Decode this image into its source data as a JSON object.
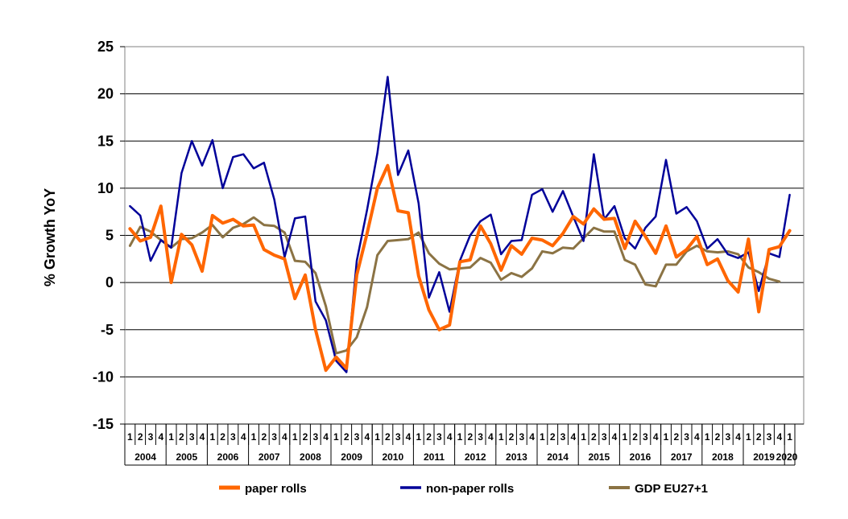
{
  "chart_data": {
    "type": "line",
    "title": "",
    "xlabel": "",
    "ylabel": "% Growth YoY",
    "ylim": [
      -15,
      25
    ],
    "y_ticks": [
      -15,
      -10,
      -5,
      0,
      5,
      10,
      15,
      20,
      25
    ],
    "grid": "horizontal",
    "legend_position": "bottom",
    "quarter_labels": [
      "1",
      "2",
      "3",
      "4"
    ],
    "years": [
      "2004",
      "2005",
      "2006",
      "2007",
      "2008",
      "2009",
      "2010",
      "2011",
      "2012",
      "2013",
      "2014",
      "2015",
      "2016",
      "2017",
      "2018",
      "2019",
      "2020"
    ],
    "x": [
      "2004Q1",
      "2004Q2",
      "2004Q3",
      "2004Q4",
      "2005Q1",
      "2005Q2",
      "2005Q3",
      "2005Q4",
      "2006Q1",
      "2006Q2",
      "2006Q3",
      "2006Q4",
      "2007Q1",
      "2007Q2",
      "2007Q3",
      "2007Q4",
      "2008Q1",
      "2008Q2",
      "2008Q3",
      "2008Q4",
      "2009Q1",
      "2009Q2",
      "2009Q3",
      "2009Q4",
      "2010Q1",
      "2010Q2",
      "2010Q3",
      "2010Q4",
      "2011Q1",
      "2011Q2",
      "2011Q3",
      "2011Q4",
      "2012Q1",
      "2012Q2",
      "2012Q3",
      "2012Q4",
      "2013Q1",
      "2013Q2",
      "2013Q3",
      "2013Q4",
      "2014Q1",
      "2014Q2",
      "2014Q3",
      "2014Q4",
      "2015Q1",
      "2015Q2",
      "2015Q3",
      "2015Q4",
      "2016Q1",
      "2016Q2",
      "2016Q3",
      "2016Q4",
      "2017Q1",
      "2017Q2",
      "2017Q3",
      "2017Q4",
      "2018Q1",
      "2018Q2",
      "2018Q3",
      "2018Q4",
      "2019Q1",
      "2019Q2",
      "2019Q3",
      "2019Q4",
      "2020Q1"
    ],
    "series": [
      {
        "name": "paper rolls",
        "color": "#ff6600",
        "values": [
          5.7,
          4.4,
          4.8,
          8.1,
          0.0,
          5.1,
          4.0,
          1.2,
          7.1,
          6.3,
          6.7,
          6.0,
          6.1,
          3.5,
          2.9,
          2.5,
          -1.7,
          0.8,
          -5.0,
          -9.3,
          -7.9,
          -9.1,
          0.8,
          5.2,
          10.0,
          12.4,
          7.6,
          7.4,
          0.7,
          -2.9,
          -5.0,
          -4.5,
          2.2,
          2.4,
          6.0,
          4.1,
          1.3,
          3.9,
          3.0,
          4.7,
          4.5,
          3.9,
          5.2,
          7.0,
          6.2,
          7.8,
          6.7,
          6.8,
          3.6,
          6.5,
          4.9,
          3.1,
          6.0,
          2.7,
          3.5,
          4.9,
          1.9,
          2.5,
          0.2,
          -1.0,
          4.6,
          -3.1,
          3.5,
          3.8,
          5.5
        ]
      },
      {
        "name": "non-paper rolls",
        "color": "#000099",
        "values": [
          8.1,
          7.1,
          2.3,
          4.5,
          3.7,
          11.6,
          15.0,
          12.4,
          15.1,
          10.0,
          13.3,
          13.6,
          12.1,
          12.7,
          8.8,
          2.7,
          6.8,
          7.0,
          -2.0,
          -4.0,
          -8.3,
          -9.5,
          2.3,
          7.7,
          13.7,
          21.8,
          11.4,
          14.0,
          8.4,
          -1.6,
          1.1,
          -3.1,
          2.3,
          5.0,
          6.5,
          7.2,
          3.0,
          4.4,
          4.5,
          9.3,
          9.9,
          7.5,
          9.7,
          7.0,
          4.4,
          13.6,
          6.7,
          8.1,
          4.7,
          3.6,
          5.8,
          7.0,
          13.0,
          7.3,
          8.0,
          6.5,
          3.6,
          4.6,
          3.0,
          2.6,
          3.2,
          -0.9,
          3.1,
          2.7,
          9.3
        ]
      },
      {
        "name": "GDP EU27+1",
        "color": "#8b7344",
        "values": [
          3.9,
          5.9,
          5.4,
          4.5,
          3.7,
          4.6,
          4.7,
          5.3,
          6.1,
          4.8,
          5.8,
          6.2,
          6.9,
          6.1,
          6.0,
          5.3,
          2.3,
          2.2,
          1.0,
          -2.5,
          -7.5,
          -7.2,
          -5.8,
          -2.6,
          2.9,
          4.4,
          4.5,
          4.6,
          5.3,
          3.1,
          2.0,
          1.4,
          1.5,
          1.6,
          2.6,
          2.1,
          0.3,
          1.0,
          0.6,
          1.5,
          3.3,
          3.1,
          3.7,
          3.6,
          4.7,
          5.8,
          5.4,
          5.4,
          2.4,
          1.9,
          -0.2,
          -0.4,
          1.9,
          1.9,
          3.3,
          3.9,
          3.3,
          3.2,
          3.3,
          3.0,
          1.6,
          1.1,
          0.4,
          0.1,
          null
        ]
      }
    ]
  }
}
